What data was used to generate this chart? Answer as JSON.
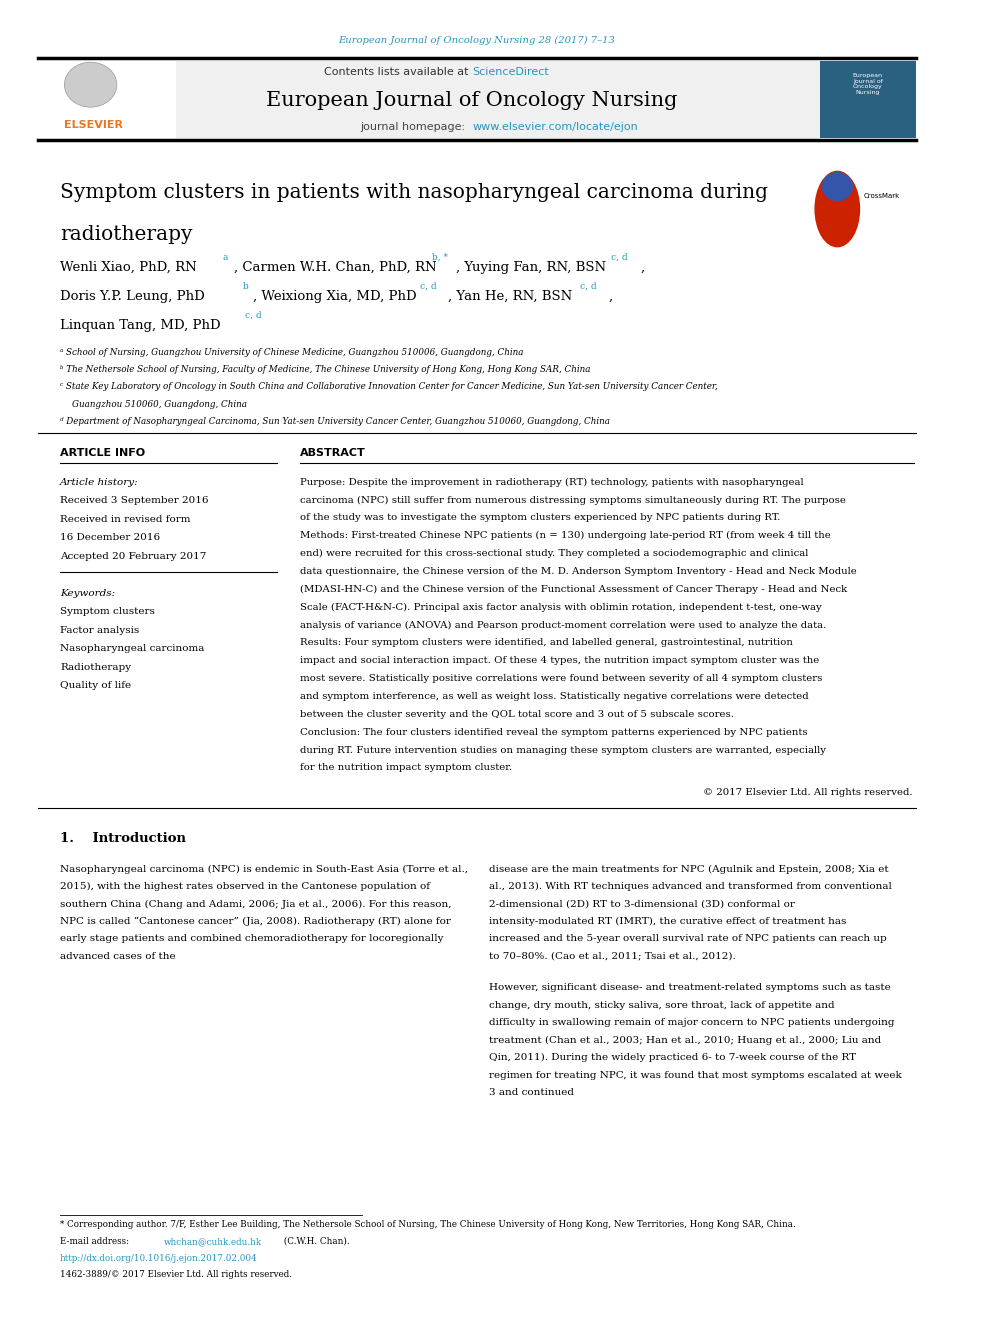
{
  "page_width": 9.92,
  "page_height": 13.23,
  "bg_color": "#ffffff",
  "top_journal_ref": "European Journal of Oncology Nursing 28 (2017) 7–13",
  "top_journal_ref_color": "#2596be",
  "header_bg": "#f0f0f0",
  "header_sciencedirect_color": "#2596be",
  "journal_title": "European Journal of Oncology Nursing",
  "journal_homepage_url": "www.elsevier.com/locate/ejon",
  "journal_homepage_url_color": "#2596be",
  "article_info_header": "ARTICLE INFO",
  "abstract_header": "ABSTRACT",
  "abstract_purpose": "Purpose: Despite the improvement in radiotherapy (RT) technology, patients with nasopharyngeal carcinoma (NPC) still suffer from numerous distressing symptoms simultaneously during RT. The purpose of the study was to investigate the symptom clusters experienced by NPC patients during RT.",
  "abstract_methods": "Methods: First-treated Chinese NPC patients (n = 130) undergoing late-period RT (from week 4 till the end) were recruited for this cross-sectional study. They completed a sociodemographic and clinical data questionnaire, the Chinese version of the M. D. Anderson Symptom Inventory - Head and Neck Module (MDASI-HN-C) and the Chinese version of the Functional Assessment of Cancer Therapy - Head and Neck Scale (FACT-H&N-C). Principal axis factor analysis with oblimin rotation, independent t-test, one-way analysis of variance (ANOVA) and Pearson product-moment correlation were used to analyze the data.",
  "abstract_results": "Results: Four symptom clusters were identified, and labelled general, gastrointestinal, nutrition impact and social interaction impact. Of these 4 types, the nutrition impact symptom cluster was the most severe. Statistically positive correlations were found between severity of all 4 symptom clusters and symptom interference, as well as weight loss. Statistically negative correlations were detected between the cluster severity and the QOL total score and 3 out of 5 subscale scores.",
  "abstract_conclusion": "Conclusion: The four clusters identified reveal the symptom patterns experienced by NPC patients during RT. Future intervention studies on managing these symptom clusters are warranted, especially for the nutrition impact symptom cluster.",
  "copyright": "© 2017 Elsevier Ltd. All rights reserved.",
  "keywords": [
    "Symptom clusters",
    "Factor analysis",
    "Nasopharyngeal carcinoma",
    "Radiotherapy",
    "Quality of life"
  ],
  "intro_col1": "Nasopharyngeal carcinoma (NPC) is endemic in South-East Asia (Torre et al., 2015), with the highest rates observed in the Cantonese population of southern China (Chang and Adami, 2006; Jia et al., 2006). For this reason, NPC is called “Cantonese cancer” (Jia, 2008). Radiotherapy (RT) alone for early stage patients and combined chemoradiotherapy for locoregionally advanced cases of the",
  "intro_col2": "disease are the main treatments for NPC (Agulnik and Epstein, 2008; Xia et al., 2013). With RT techniques advanced and transformed from conventional 2-dimensional (2D) RT to 3-dimensional (3D) conformal or intensity-modulated RT (IMRT), the curative effect of treatment has increased and the 5-year overall survival rate of NPC patients can reach up to 70–80%. (Cao et al., 2011; Tsai et al., 2012).\n\nHowever, significant disease- and treatment-related symptoms such as taste change, dry mouth, sticky saliva, sore throat, lack of appetite and difficulty in swallowing remain of major concern to NPC patients undergoing treatment (Chan et al., 2003; Han et al., 2010; Huang et al., 2000; Liu and Qin, 2011). During the widely practiced 6- to 7-week course of the RT regimen for treating NPC, it was found that most symptoms escalated at week 3 and continued",
  "footnote_star": "* Corresponding author. 7/F, Esther Lee Building, The Nethersole School of Nursing, The Chinese University of Hong Kong, New Territories, Hong Kong SAR, China.",
  "footnote_email": "whchan@cuhk.edu.hk",
  "footnote_email_color": "#2596be",
  "footnote_email_suffix": " (C.W.H. Chan).",
  "footnote_doi": "http://dx.doi.org/10.1016/j.ejon.2017.02.004",
  "footnote_doi_color": "#2596be",
  "footnote_issn": "1462-3889/© 2017 Elsevier Ltd. All rights reserved.",
  "elsevier_color": "#e87722",
  "cyan_color": "#2596be"
}
